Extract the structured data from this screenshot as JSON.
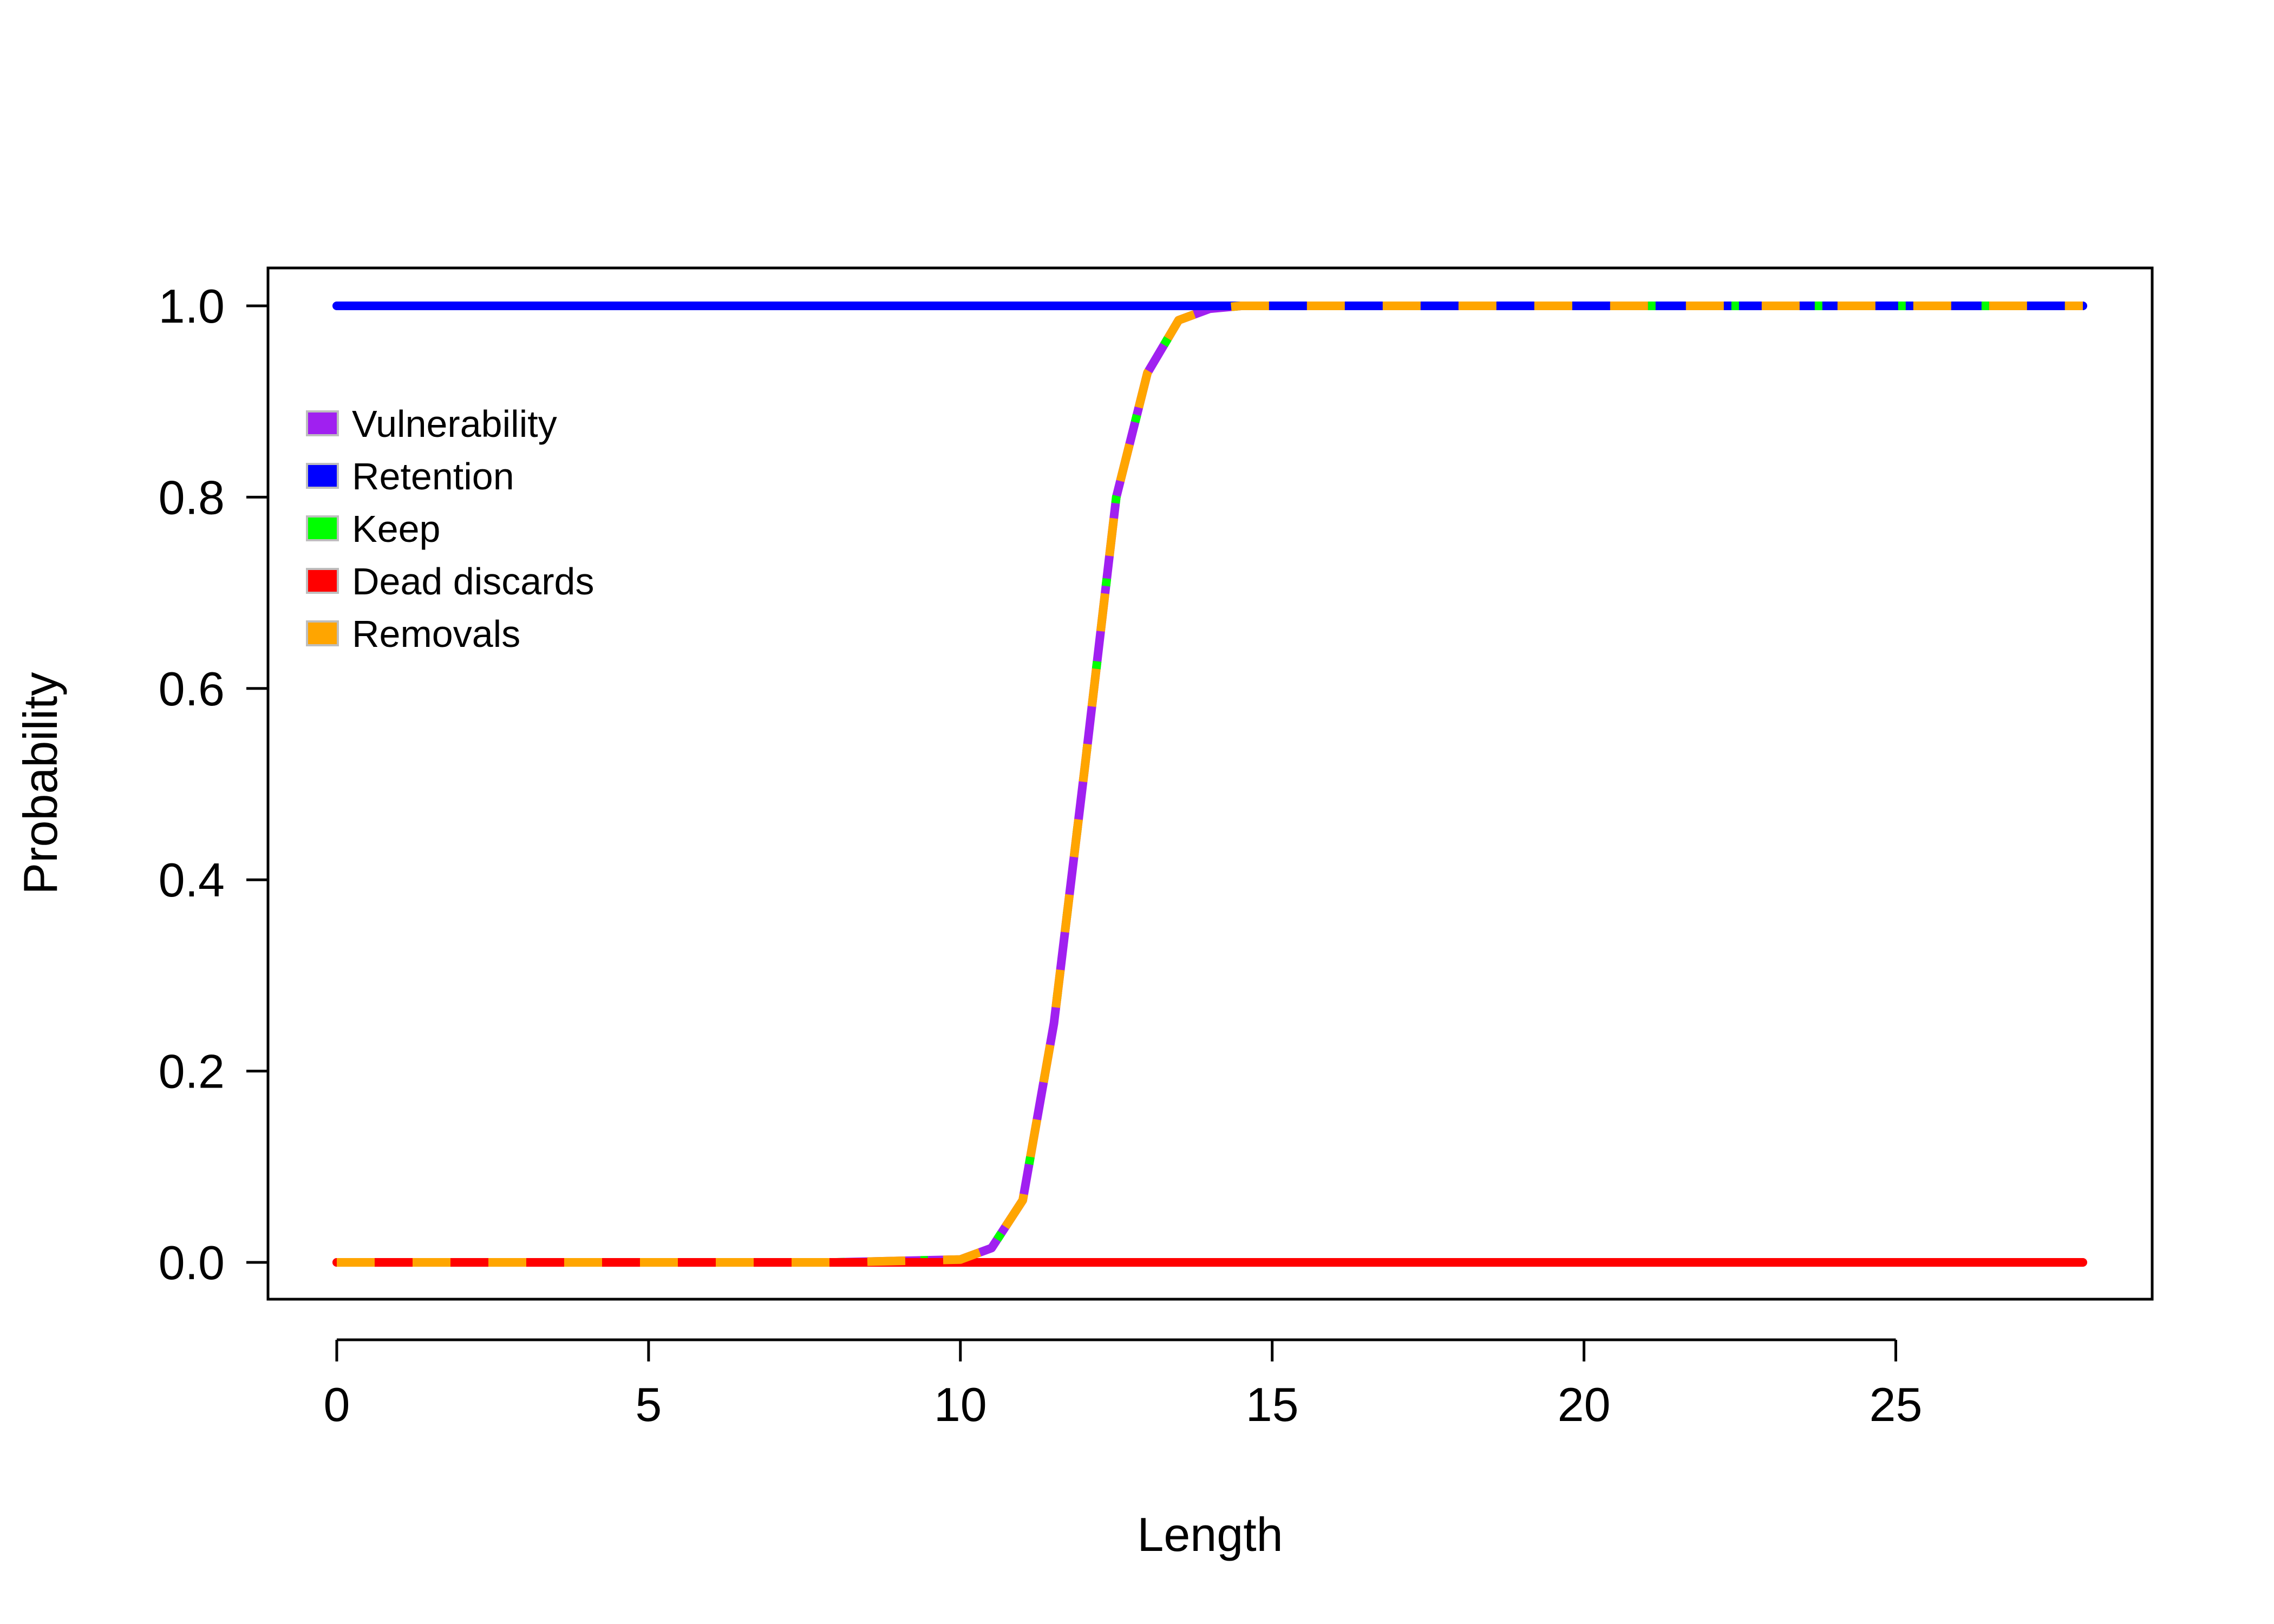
{
  "chart_data": {
    "type": "line",
    "xlabel": "Length",
    "ylabel": "Probability",
    "xlim": [
      0,
      28
    ],
    "ylim": [
      0,
      1
    ],
    "x_ticks": [
      "0",
      "5",
      "10",
      "15",
      "20",
      "25"
    ],
    "y_ticks": [
      "0.0",
      "0.2",
      "0.4",
      "0.6",
      "0.8",
      "1.0"
    ],
    "grid": false,
    "legend_position": "top-left",
    "legend": [
      {
        "label": "Vulnerability",
        "color": "#a020f0"
      },
      {
        "label": "Retention",
        "color": "#0000ff"
      },
      {
        "label": "Keep",
        "color": "#00ff00"
      },
      {
        "label": "Dead discards",
        "color": "#ff0000"
      },
      {
        "label": "Removals",
        "color": "#ffa500"
      }
    ],
    "series": [
      {
        "name": "Vulnerability",
        "color": "#a020f0",
        "style": "solid",
        "x": [
          0,
          8,
          10,
          10.5,
          11,
          11.5,
          12,
          12.5,
          13,
          13.5,
          14,
          14.5,
          15,
          20,
          28
        ],
        "y": [
          0,
          0,
          0.003,
          0.015,
          0.065,
          0.25,
          0.52,
          0.8,
          0.93,
          0.985,
          0.997,
          1.0,
          1.0,
          1.0,
          1.0
        ]
      },
      {
        "name": "Retention",
        "color": "#0000ff",
        "style": "solid",
        "x": [
          0,
          28
        ],
        "y": [
          1,
          1
        ]
      },
      {
        "name": "Keep",
        "color": "#00ff00",
        "style": "dotted",
        "x": [
          0,
          8,
          10,
          10.5,
          11,
          11.5,
          12,
          12.5,
          13,
          13.5,
          14,
          14.5,
          15,
          20,
          28
        ],
        "y": [
          0,
          0,
          0.003,
          0.015,
          0.065,
          0.25,
          0.52,
          0.8,
          0.93,
          0.985,
          0.997,
          1.0,
          1.0,
          1.0,
          1.0
        ]
      },
      {
        "name": "Dead discards",
        "color": "#ff0000",
        "style": "solid",
        "x": [
          0,
          28
        ],
        "y": [
          0,
          0
        ]
      },
      {
        "name": "Removals",
        "color": "#ffa500",
        "style": "dashed",
        "x": [
          0,
          8,
          10,
          10.5,
          11,
          11.5,
          12,
          12.5,
          13,
          13.5,
          14,
          14.5,
          15,
          20,
          28
        ],
        "y": [
          0,
          0,
          0.003,
          0.015,
          0.065,
          0.25,
          0.52,
          0.8,
          0.93,
          0.985,
          0.997,
          1.0,
          1.0,
          1.0,
          1.0
        ]
      }
    ]
  }
}
